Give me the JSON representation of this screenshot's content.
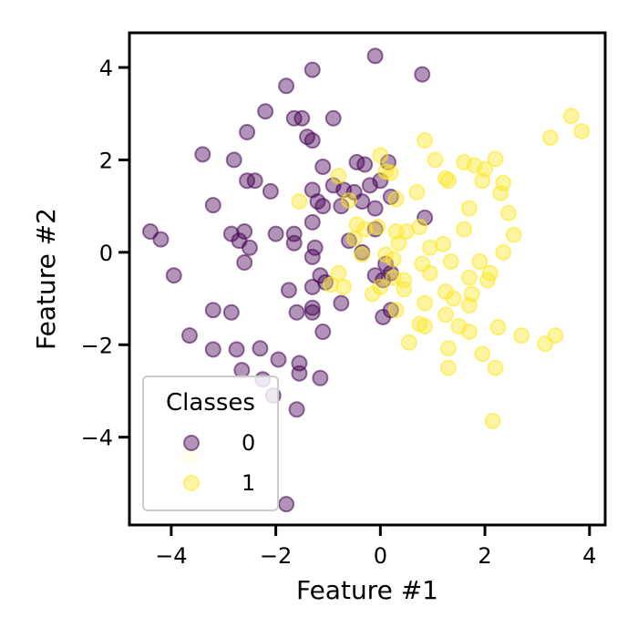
{
  "chart_data": {
    "type": "scatter",
    "title": "",
    "xlabel": "Feature #1",
    "ylabel": "Feature #2",
    "xlim": [
      -4.8,
      4.3
    ],
    "ylim": [
      -5.9,
      4.75
    ],
    "xticks": [
      -4,
      -2,
      0,
      2,
      4
    ],
    "yticks": [
      -4,
      -2,
      0,
      2,
      4
    ],
    "xtick_labels": [
      "−4",
      "−2",
      "0",
      "2",
      "4"
    ],
    "ytick_labels": [
      "−4",
      "−2",
      "0",
      "2",
      "4"
    ],
    "grid": false,
    "legend": {
      "title": "Classes",
      "placement": "lower-left"
    },
    "series": [
      {
        "name": "0",
        "color": "#440154",
        "points": [
          [
            -0.1,
            4.25
          ],
          [
            -1.3,
            3.95
          ],
          [
            0.8,
            3.85
          ],
          [
            -1.8,
            3.6
          ],
          [
            -2.2,
            3.05
          ],
          [
            -1.65,
            2.9
          ],
          [
            -1.5,
            2.9
          ],
          [
            -0.9,
            2.9
          ],
          [
            -2.55,
            2.6
          ],
          [
            -1.4,
            2.5
          ],
          [
            -1.3,
            2.42
          ],
          [
            -3.4,
            2.12
          ],
          [
            -2.8,
            2.0
          ],
          [
            -1.1,
            1.85
          ],
          [
            -0.45,
            1.95
          ],
          [
            -0.3,
            1.9
          ],
          [
            0.15,
            1.95
          ],
          [
            -2.55,
            1.55
          ],
          [
            -2.4,
            1.55
          ],
          [
            -2.1,
            1.32
          ],
          [
            -1.3,
            1.35
          ],
          [
            -0.9,
            1.45
          ],
          [
            -0.7,
            1.35
          ],
          [
            -0.5,
            1.3
          ],
          [
            -0.2,
            1.45
          ],
          [
            0.0,
            1.55
          ],
          [
            -3.2,
            1.02
          ],
          [
            -1.2,
            1.1
          ],
          [
            -1.1,
            1.0
          ],
          [
            -0.75,
            1.0
          ],
          [
            -0.35,
            1.1
          ],
          [
            -0.1,
            0.95
          ],
          [
            0.2,
            1.2
          ],
          [
            -1.3,
            0.65
          ],
          [
            -1.65,
            0.4
          ],
          [
            -2.0,
            0.4
          ],
          [
            -2.6,
            0.45
          ],
          [
            -2.85,
            0.4
          ],
          [
            -0.1,
            0.5
          ],
          [
            0.85,
            0.75
          ],
          [
            -4.4,
            0.45
          ],
          [
            -4.2,
            0.28
          ],
          [
            -2.7,
            0.25
          ],
          [
            -2.5,
            0.1
          ],
          [
            -1.65,
            0.2
          ],
          [
            -1.25,
            0.1
          ],
          [
            -0.6,
            0.25
          ],
          [
            -0.35,
            0.0
          ],
          [
            -1.3,
            -0.1
          ],
          [
            -2.6,
            -0.22
          ],
          [
            0.1,
            -0.25
          ],
          [
            0.2,
            -0.45
          ],
          [
            -3.95,
            -0.5
          ],
          [
            -1.15,
            -0.5
          ],
          [
            -1.05,
            -0.65
          ],
          [
            -0.1,
            -0.5
          ],
          [
            0.05,
            -0.6
          ],
          [
            -1.3,
            -0.75
          ],
          [
            -1.75,
            -0.82
          ],
          [
            -0.75,
            -1.1
          ],
          [
            -1.3,
            -1.2
          ],
          [
            -1.3,
            -1.3
          ],
          [
            -1.6,
            -1.3
          ],
          [
            0.2,
            -1.25
          ],
          [
            0.05,
            -1.4
          ],
          [
            -3.2,
            -1.25
          ],
          [
            -2.85,
            -1.3
          ],
          [
            -1.1,
            -1.72
          ],
          [
            -3.65,
            -1.8
          ],
          [
            -3.2,
            -2.1
          ],
          [
            -2.75,
            -2.1
          ],
          [
            -2.3,
            -2.08
          ],
          [
            -1.95,
            -2.32
          ],
          [
            -1.55,
            -2.4
          ],
          [
            -2.65,
            -2.55
          ],
          [
            -2.25,
            -2.75
          ],
          [
            -1.55,
            -2.62
          ],
          [
            -1.15,
            -2.72
          ],
          [
            -2.05,
            -3.1
          ],
          [
            -1.6,
            -3.4
          ],
          [
            -1.8,
            -5.45
          ]
        ]
      },
      {
        "name": "1",
        "color": "#fde725",
        "points": [
          [
            3.65,
            2.95
          ],
          [
            3.85,
            2.62
          ],
          [
            3.25,
            2.48
          ],
          [
            0.85,
            2.42
          ],
          [
            0.0,
            2.1
          ],
          [
            1.05,
            2.0
          ],
          [
            1.6,
            1.95
          ],
          [
            1.8,
            1.88
          ],
          [
            2.2,
            2.02
          ],
          [
            2.0,
            1.8
          ],
          [
            0.1,
            1.75
          ],
          [
            0.2,
            1.72
          ],
          [
            -0.8,
            1.65
          ],
          [
            1.25,
            1.6
          ],
          [
            1.3,
            1.55
          ],
          [
            1.95,
            1.55
          ],
          [
            2.35,
            1.5
          ],
          [
            2.3,
            1.28
          ],
          [
            0.7,
            1.3
          ],
          [
            -1.55,
            1.1
          ],
          [
            -0.6,
            1.12
          ],
          [
            0.3,
            1.15
          ],
          [
            1.7,
            0.95
          ],
          [
            2.45,
            0.85
          ],
          [
            -0.45,
            0.6
          ],
          [
            -0.3,
            0.5
          ],
          [
            -0.05,
            0.55
          ],
          [
            0.3,
            0.45
          ],
          [
            0.5,
            0.45
          ],
          [
            0.75,
            0.55
          ],
          [
            1.6,
            0.5
          ],
          [
            2.55,
            0.38
          ],
          [
            -0.5,
            0.3
          ],
          [
            0.35,
            0.2
          ],
          [
            0.95,
            0.1
          ],
          [
            1.2,
            0.18
          ],
          [
            2.35,
            0.0
          ],
          [
            -0.35,
            -0.05
          ],
          [
            0.1,
            -0.05
          ],
          [
            0.25,
            -0.15
          ],
          [
            0.8,
            -0.25
          ],
          [
            1.35,
            -0.2
          ],
          [
            1.9,
            -0.2
          ],
          [
            2.1,
            -0.45
          ],
          [
            -0.8,
            -0.45
          ],
          [
            0.25,
            -0.55
          ],
          [
            0.45,
            -0.6
          ],
          [
            0.95,
            -0.45
          ],
          [
            1.7,
            -0.55
          ],
          [
            2.05,
            -0.6
          ],
          [
            -0.95,
            -0.7
          ],
          [
            -0.7,
            -0.75
          ],
          [
            0.0,
            -0.75
          ],
          [
            0.45,
            -0.8
          ],
          [
            1.25,
            -0.85
          ],
          [
            1.4,
            -1.0
          ],
          [
            1.75,
            -0.9
          ],
          [
            -0.15,
            -0.9
          ],
          [
            0.85,
            -1.1
          ],
          [
            0.3,
            -1.25
          ],
          [
            1.7,
            -1.15
          ],
          [
            1.25,
            -1.35
          ],
          [
            0.75,
            -1.55
          ],
          [
            0.85,
            -1.6
          ],
          [
            1.5,
            -1.6
          ],
          [
            1.7,
            -1.72
          ],
          [
            2.25,
            -1.62
          ],
          [
            2.7,
            -1.8
          ],
          [
            3.35,
            -1.8
          ],
          [
            3.15,
            -1.98
          ],
          [
            0.55,
            -1.95
          ],
          [
            1.3,
            -2.08
          ],
          [
            1.95,
            -2.2
          ],
          [
            1.3,
            -2.5
          ],
          [
            2.2,
            -2.5
          ],
          [
            2.15,
            -3.65
          ],
          [
            -3.65,
            -4.4
          ]
        ]
      }
    ]
  }
}
